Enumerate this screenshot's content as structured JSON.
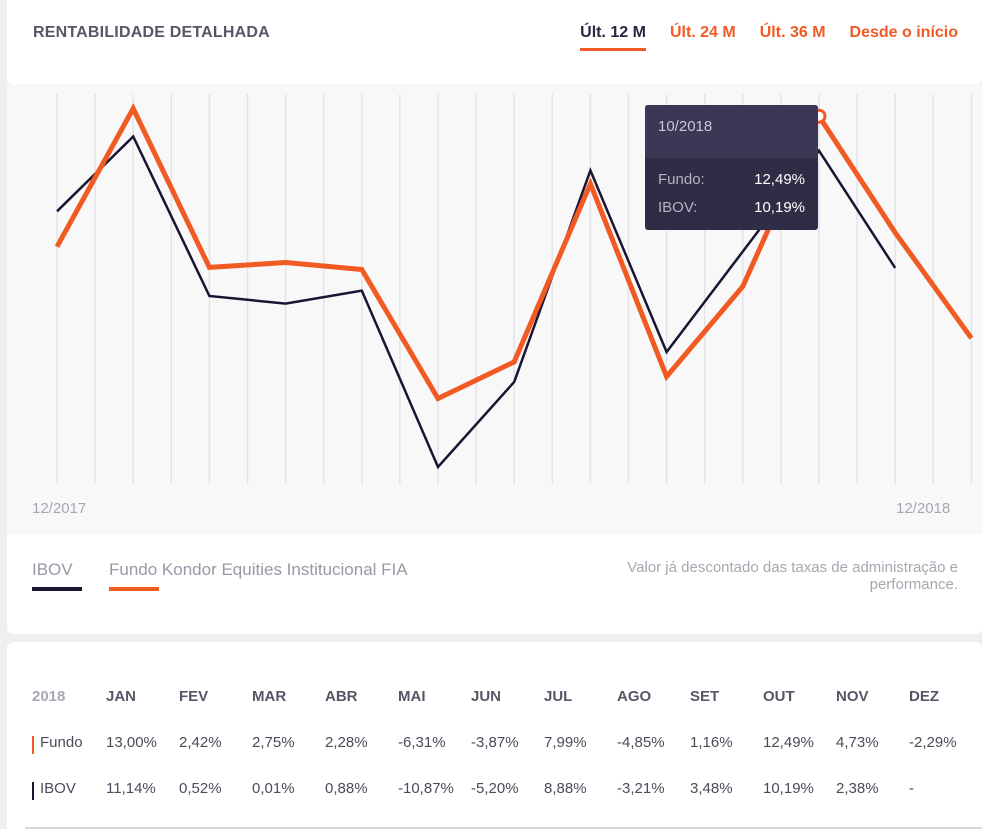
{
  "header": {
    "title": "RENTABILIDADE DETALHADA",
    "tabs": [
      {
        "label": "Últ. 12 M",
        "active": true
      },
      {
        "label": "Últ. 24 M",
        "active": false
      },
      {
        "label": "Últ. 36 M",
        "active": false
      },
      {
        "label": "Desde o início",
        "active": false
      }
    ]
  },
  "chart": {
    "start_label": "12/2017",
    "end_label": "12/2018",
    "tooltip": {
      "date": "10/2018",
      "rows": [
        {
          "label": "Fundo:",
          "value": "12,49%"
        },
        {
          "label": "IBOV:",
          "value": "10,19%"
        }
      ]
    }
  },
  "chart_data": {
    "type": "line",
    "x": [
      "12/2017",
      "01/2018",
      "02/2018",
      "03/2018",
      "04/2018",
      "05/2018",
      "06/2018",
      "07/2018",
      "08/2018",
      "09/2018",
      "10/2018",
      "11/2018",
      "12/2018"
    ],
    "series": [
      {
        "name": "IBOV",
        "color": "#1a1433",
        "values": [
          6.16,
          11.14,
          0.52,
          0.01,
          0.88,
          -10.87,
          -5.2,
          8.88,
          -3.21,
          3.48,
          10.19,
          2.38,
          null
        ]
      },
      {
        "name": "Fundo Kondor Equities Institucional FIA",
        "color": "#f15a22",
        "values": [
          3.8,
          13.0,
          2.42,
          2.75,
          2.28,
          -6.31,
          -3.87,
          7.99,
          -4.85,
          1.16,
          12.49,
          4.73,
          -2.29
        ]
      }
    ],
    "highlight_index": 10
  },
  "legend": {
    "items": [
      {
        "label": "IBOV",
        "color": "#1a1433"
      },
      {
        "label": "Fundo Kondor Equities Institucional FIA",
        "color": "#f15a22"
      }
    ],
    "note": "Valor já descontado das taxas de administração e performance."
  },
  "table": {
    "year": "2018",
    "months": [
      "JAN",
      "FEV",
      "MAR",
      "ABR",
      "MAI",
      "JUN",
      "JUL",
      "AGO",
      "SET",
      "OUT",
      "NOV",
      "DEZ"
    ],
    "rows": [
      {
        "label": "Fundo",
        "color": "#f15a22",
        "values": [
          "13,00%",
          "2,42%",
          "2,75%",
          "2,28%",
          "-6,31%",
          "-3,87%",
          "7,99%",
          "-4,85%",
          "1,16%",
          "12,49%",
          "4,73%",
          "-2,29%"
        ]
      },
      {
        "label": "IBOV",
        "color": "#1a1433",
        "values": [
          "11,14%",
          "0,52%",
          "0,01%",
          "0,88%",
          "-10,87%",
          "-5,20%",
          "8,88%",
          "-3,21%",
          "3,48%",
          "10,19%",
          "2,38%",
          "-"
        ]
      }
    ]
  }
}
